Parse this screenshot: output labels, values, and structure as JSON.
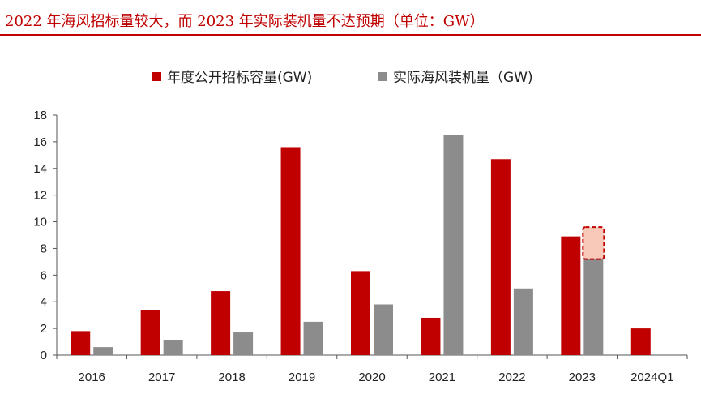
{
  "header": {
    "title": "2022 年海风招标量较大，而 2023 年实际装机量不达预期（单位：GW）"
  },
  "colors": {
    "tender": "#c00000",
    "installed": "#8c8c8c",
    "highlight_fill": "#f8c8b8",
    "highlight_border": "#c00000",
    "axis": "#555555"
  },
  "chart_data": {
    "type": "bar",
    "title": "",
    "xlabel": "",
    "ylabel": "",
    "ylim": [
      0,
      18
    ],
    "yticks": [
      0,
      2,
      4,
      6,
      8,
      10,
      12,
      14,
      16,
      18
    ],
    "ytick_labels": [
      "0",
      "2",
      "4",
      "6",
      "8",
      "10",
      "12",
      "14",
      "16",
      "18"
    ],
    "categories": [
      "2016",
      "2017",
      "2018",
      "2019",
      "2020",
      "2021",
      "2022",
      "2023",
      "2024Q1"
    ],
    "series": [
      {
        "name": "年度公开招标容量(GW)",
        "color": "#c00000",
        "values": [
          1.8,
          3.4,
          4.8,
          15.6,
          6.3,
          2.8,
          14.7,
          8.9,
          2.0
        ]
      },
      {
        "name": "实际海风装机量（GW)",
        "color": "#8c8c8c",
        "values": [
          0.6,
          1.1,
          1.7,
          2.5,
          3.8,
          16.5,
          5.0,
          7.2,
          null
        ]
      }
    ],
    "annotations": [
      {
        "type": "dashed-highlight-box",
        "category": "2023",
        "series": "实际海风装机量（GW)",
        "from": 7.2,
        "to": 9.6
      }
    ],
    "legend_position": "top-center",
    "grid": false
  }
}
